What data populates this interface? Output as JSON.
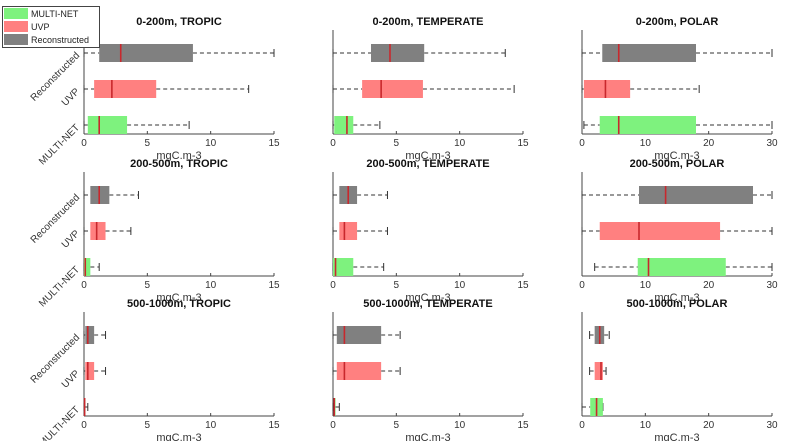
{
  "legend": [
    {
      "label": "MULTI-NET",
      "color": "#7EF27E"
    },
    {
      "label": "UVP",
      "color": "#FF8080"
    },
    {
      "label": "Reconstructed",
      "color": "#808080"
    }
  ],
  "colors": {
    "MULTI-NET": "#7EF27E",
    "UVP": "#FF8080",
    "Reconstructed": "#808080",
    "median": "#C8282D",
    "whisker": "#333333"
  },
  "chart_data": [
    {
      "type": "boxplot",
      "title": "0-200m, TROPIC",
      "xlabel": "mgC.m-3",
      "xlim": [
        0,
        15
      ],
      "xticks": [
        0,
        5,
        10,
        15
      ],
      "categories": [
        "MULTI-NET",
        "UVP",
        "Reconstructed"
      ],
      "series": [
        {
          "name": "MULTI-NET",
          "min": 0,
          "q1": 0.3,
          "median": 1.2,
          "q3": 3.4,
          "max": 8.3
        },
        {
          "name": "UVP",
          "min": 0,
          "q1": 0.8,
          "median": 2.2,
          "q3": 5.7,
          "max": 13
        },
        {
          "name": "Reconstructed",
          "min": 0,
          "q1": 1.2,
          "median": 2.9,
          "q3": 8.6,
          "max": 15
        }
      ]
    },
    {
      "type": "boxplot",
      "title": "0-200m, TEMPERATE",
      "xlabel": "mgC.m-3",
      "xlim": [
        0,
        15
      ],
      "xticks": [
        0,
        5,
        10,
        15
      ],
      "categories": [
        "MULTI-NET",
        "UVP",
        "Reconstructed"
      ],
      "series": [
        {
          "name": "MULTI-NET",
          "min": 0,
          "q1": 0.1,
          "median": 1.1,
          "q3": 1.6,
          "max": 3.7
        },
        {
          "name": "UVP",
          "min": 0,
          "q1": 2.3,
          "median": 3.8,
          "q3": 7.1,
          "max": 14.3
        },
        {
          "name": "Reconstructed",
          "min": 0,
          "q1": 3.0,
          "median": 4.5,
          "q3": 7.2,
          "max": 13.6
        }
      ]
    },
    {
      "type": "boxplot",
      "title": "0-200m, POLAR",
      "xlabel": "mgC.m-3",
      "xlim": [
        0,
        30
      ],
      "xticks": [
        0,
        10,
        20,
        30
      ],
      "categories": [
        "MULTI-NET",
        "UVP",
        "Reconstructed"
      ],
      "series": [
        {
          "name": "MULTI-NET",
          "min": 0.3,
          "q1": 2.8,
          "median": 5.8,
          "q3": 18.0,
          "max": 30
        },
        {
          "name": "UVP",
          "min": 0,
          "q1": 0.3,
          "median": 3.7,
          "q3": 7.6,
          "max": 18.5
        },
        {
          "name": "Reconstructed",
          "min": 0,
          "q1": 3.2,
          "median": 5.8,
          "q3": 18.0,
          "max": 30
        }
      ]
    },
    {
      "type": "boxplot",
      "title": "200-500m, TROPIC",
      "xlabel": "mgC.m-3",
      "xlim": [
        0,
        15
      ],
      "xticks": [
        0,
        5,
        10,
        15
      ],
      "categories": [
        "MULTI-NET",
        "UVP",
        "Reconstructed"
      ],
      "series": [
        {
          "name": "MULTI-NET",
          "min": 0,
          "q1": 0,
          "median": 0.1,
          "q3": 0.5,
          "max": 1.2
        },
        {
          "name": "UVP",
          "min": 0,
          "q1": 0.5,
          "median": 1.0,
          "q3": 1.7,
          "max": 3.7
        },
        {
          "name": "Reconstructed",
          "min": 0,
          "q1": 0.5,
          "median": 1.2,
          "q3": 2.0,
          "max": 4.3
        }
      ]
    },
    {
      "type": "boxplot",
      "title": "200-500m, TEMPERATE",
      "xlabel": "mgC.m-3",
      "xlim": [
        0,
        15
      ],
      "xticks": [
        0,
        5,
        10,
        15
      ],
      "categories": [
        "MULTI-NET",
        "UVP",
        "Reconstructed"
      ],
      "series": [
        {
          "name": "MULTI-NET",
          "min": 0,
          "q1": 0,
          "median": 0.2,
          "q3": 1.6,
          "max": 4.0
        },
        {
          "name": "UVP",
          "min": 0,
          "q1": 0.5,
          "median": 0.9,
          "q3": 1.9,
          "max": 4.3
        },
        {
          "name": "Reconstructed",
          "min": 0,
          "q1": 0.5,
          "median": 1.2,
          "q3": 1.9,
          "max": 4.3
        }
      ]
    },
    {
      "type": "boxplot",
      "title": "200-500m, POLAR",
      "xlabel": "mgC.m-3",
      "xlim": [
        0,
        30
      ],
      "xticks": [
        0,
        10,
        20,
        30
      ],
      "categories": [
        "MULTI-NET",
        "UVP",
        "Reconstructed"
      ],
      "series": [
        {
          "name": "MULTI-NET",
          "min": 2.0,
          "q1": 8.8,
          "median": 10.5,
          "q3": 22.7,
          "max": 30
        },
        {
          "name": "UVP",
          "min": 0,
          "q1": 2.8,
          "median": 9.0,
          "q3": 21.8,
          "max": 30
        },
        {
          "name": "Reconstructed",
          "min": 0,
          "q1": 9.0,
          "median": 13.2,
          "q3": 27.0,
          "max": 30
        }
      ]
    },
    {
      "type": "boxplot",
      "title": "500-1000m, TROPIC",
      "xlabel": "mgC.m-3",
      "xlim": [
        0,
        15
      ],
      "xticks": [
        0,
        5,
        10,
        15
      ],
      "categories": [
        "MULTI-NET",
        "UVP",
        "Reconstructed"
      ],
      "series": [
        {
          "name": "MULTI-NET",
          "min": 0,
          "q1": 0,
          "median": 0.05,
          "q3": 0.1,
          "max": 0.3
        },
        {
          "name": "UVP",
          "min": 0,
          "q1": 0.1,
          "median": 0.3,
          "q3": 0.8,
          "max": 1.7
        },
        {
          "name": "Reconstructed",
          "min": 0,
          "q1": 0.1,
          "median": 0.3,
          "q3": 0.8,
          "max": 1.7
        }
      ]
    },
    {
      "type": "boxplot",
      "title": "500-1000m, TEMPERATE",
      "xlabel": "mgC.m-3",
      "xlim": [
        0,
        15
      ],
      "xticks": [
        0,
        5,
        10,
        15
      ],
      "categories": [
        "MULTI-NET",
        "UVP",
        "Reconstructed"
      ],
      "series": [
        {
          "name": "MULTI-NET",
          "min": 0,
          "q1": 0.05,
          "median": 0.1,
          "q3": 0.2,
          "max": 0.5
        },
        {
          "name": "UVP",
          "min": 0,
          "q1": 0.3,
          "median": 0.9,
          "q3": 3.8,
          "max": 5.3
        },
        {
          "name": "Reconstructed",
          "min": 0,
          "q1": 0.3,
          "median": 0.9,
          "q3": 3.8,
          "max": 5.3
        }
      ]
    },
    {
      "type": "boxplot",
      "title": "500-1000m, POLAR",
      "xlabel": "mgC.m-3",
      "xlim": [
        0,
        30
      ],
      "xticks": [
        0,
        10,
        20,
        30
      ],
      "categories": [
        "MULTI-NET",
        "UVP",
        "Reconstructed"
      ],
      "series": [
        {
          "name": "MULTI-NET",
          "min": 0,
          "q1": 1.3,
          "median": 2.3,
          "q3": 3.3,
          "max": 3.3
        },
        {
          "name": "UVP",
          "min": 1.2,
          "q1": 2.0,
          "median": 3.0,
          "q3": 3.3,
          "max": 3.8
        },
        {
          "name": "Reconstructed",
          "min": 1.2,
          "q1": 2.0,
          "median": 2.8,
          "q3": 3.5,
          "max": 4.3
        }
      ]
    }
  ]
}
